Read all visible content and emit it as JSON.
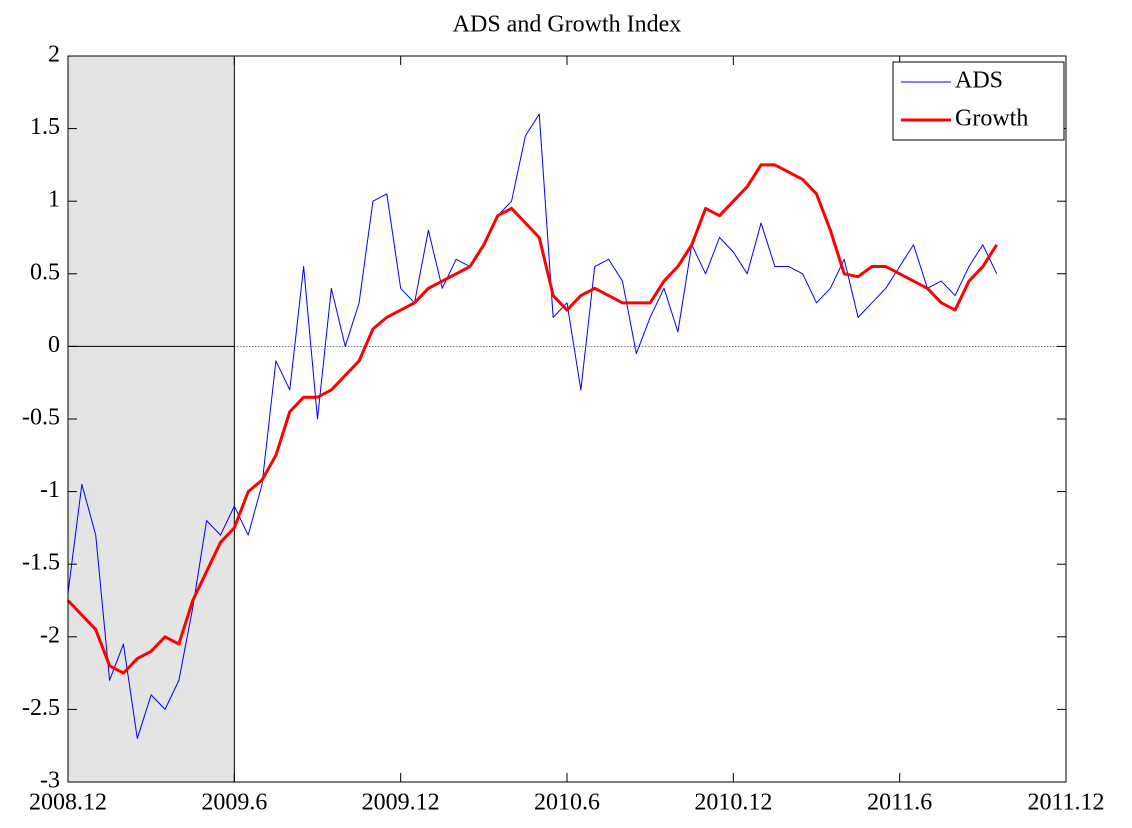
{
  "chart_data": {
    "type": "line",
    "title": "ADS and Growth Index",
    "x": [
      0,
      0.5,
      1,
      1.5,
      2,
      2.5,
      3,
      3.5,
      4,
      4.5,
      5,
      5.5,
      6,
      6.5,
      7,
      7.5,
      8,
      8.5,
      9,
      9.5,
      10,
      10.5,
      11,
      11.5,
      12,
      12.5,
      13,
      13.5,
      14,
      14.5,
      15,
      15.5,
      16,
      16.5,
      17,
      17.5,
      18,
      18.5,
      19,
      19.5,
      20,
      20.5,
      21,
      21.5,
      22,
      22.5,
      23,
      23.5,
      24,
      24.5,
      25,
      25.5,
      26,
      26.5,
      27,
      27.5,
      28,
      28.5,
      29,
      29.5,
      30,
      30.5,
      31,
      31.5,
      32,
      32.5,
      33,
      33.5
    ],
    "series": [
      {
        "name": "ADS",
        "color": "#0000ff",
        "width": 1,
        "values": [
          -1.7,
          -0.95,
          -1.3,
          -2.3,
          -2.05,
          -2.7,
          -2.4,
          -2.5,
          -2.3,
          -1.8,
          -1.2,
          -1.3,
          -1.1,
          -1.3,
          -0.95,
          -0.1,
          -0.3,
          0.55,
          -0.5,
          0.4,
          0.0,
          0.3,
          1.0,
          1.05,
          0.4,
          0.3,
          0.8,
          0.4,
          0.6,
          0.55,
          0.7,
          0.9,
          1.0,
          1.45,
          1.6,
          0.2,
          0.3,
          -0.3,
          0.55,
          0.6,
          0.45,
          -0.05,
          0.2,
          0.4,
          0.1,
          0.7,
          0.5,
          0.75,
          0.65,
          0.5,
          0.85,
          0.55,
          0.55,
          0.5,
          0.3,
          0.4,
          0.6,
          0.2,
          0.3,
          0.4,
          0.55,
          0.7,
          0.4,
          0.45,
          0.35,
          0.55,
          0.7,
          0.5
        ]
      },
      {
        "name": "Growth",
        "color": "#ff0000",
        "width": 3,
        "values": [
          -1.75,
          -1.85,
          -1.95,
          -2.2,
          -2.25,
          -2.15,
          -2.1,
          -2.0,
          -2.05,
          -1.75,
          -1.55,
          -1.35,
          -1.25,
          -1.0,
          -0.92,
          -0.75,
          -0.45,
          -0.35,
          -0.35,
          -0.3,
          -0.2,
          -0.1,
          0.12,
          0.2,
          0.25,
          0.3,
          0.4,
          0.45,
          0.5,
          0.55,
          0.7,
          0.9,
          0.95,
          0.85,
          0.75,
          0.35,
          0.25,
          0.35,
          0.4,
          0.35,
          0.3,
          0.3,
          0.3,
          0.45,
          0.55,
          0.7,
          0.95,
          0.9,
          1.0,
          1.1,
          1.25,
          1.25,
          1.2,
          1.15,
          1.05,
          0.8,
          0.5,
          0.48,
          0.55,
          0.55,
          0.5,
          0.45,
          0.4,
          0.3,
          0.25,
          0.45,
          0.55,
          0.7
        ]
      }
    ],
    "xlim": [
      0,
      36
    ],
    "xticks": [
      {
        "value": 0,
        "label": "2008.12"
      },
      {
        "value": 6,
        "label": "2009.6"
      },
      {
        "value": 12,
        "label": "2009.12"
      },
      {
        "value": 18,
        "label": "2010.6"
      },
      {
        "value": 24,
        "label": "2010.12"
      },
      {
        "value": 30,
        "label": "2011.6"
      },
      {
        "value": 36,
        "label": "2011.12"
      }
    ],
    "ylim": [
      -3,
      2
    ],
    "yticks": [
      -3,
      -2.5,
      -2,
      -1.5,
      -1,
      -0.5,
      0,
      0.5,
      1,
      1.5,
      2
    ],
    "shaded_x": [
      0,
      6
    ],
    "legend": "upper right"
  }
}
